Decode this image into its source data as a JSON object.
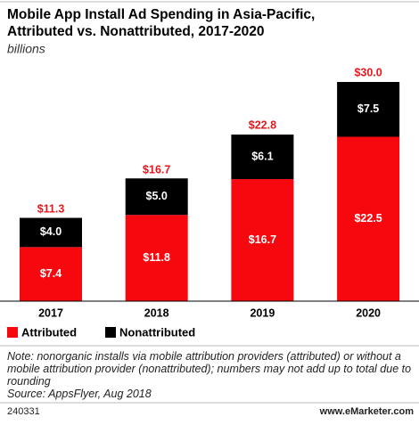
{
  "chart_data": {
    "type": "stacked-bar",
    "title": [
      "Mobile App Install Ad Spending in Asia-Pacific,",
      "Attributed vs. Nonattributed, 2017-2020"
    ],
    "subtitle": "billions",
    "categories": [
      "2017",
      "2018",
      "2019",
      "2020"
    ],
    "series": [
      {
        "name": "Attributed",
        "color": "#f7080f",
        "values": [
          7.4,
          11.8,
          16.7,
          22.5
        ],
        "value_labels": [
          "$7.4",
          "$11.8",
          "$16.7",
          "$22.5"
        ]
      },
      {
        "name": "Nonattributed",
        "color": "#000000",
        "values": [
          4.0,
          5.0,
          6.1,
          7.5
        ],
        "value_labels": [
          "$4.0",
          "$5.0",
          "$6.1",
          "$7.5"
        ]
      }
    ],
    "totals": {
      "color": "#e8161c",
      "values": [
        11.3,
        16.7,
        22.8,
        30.0
      ],
      "value_labels": [
        "$11.3",
        "$16.7",
        "$22.8",
        "$30.0"
      ]
    },
    "note": "Note: nonorganic installs via mobile attribution providers (attributed) or without a mobile attribution provider (nonattributed); numbers may not add up to total due to rounding",
    "source": "Source: AppsFlyer, Aug 2018",
    "id": "240331",
    "site": "www.eMarketer.com"
  }
}
